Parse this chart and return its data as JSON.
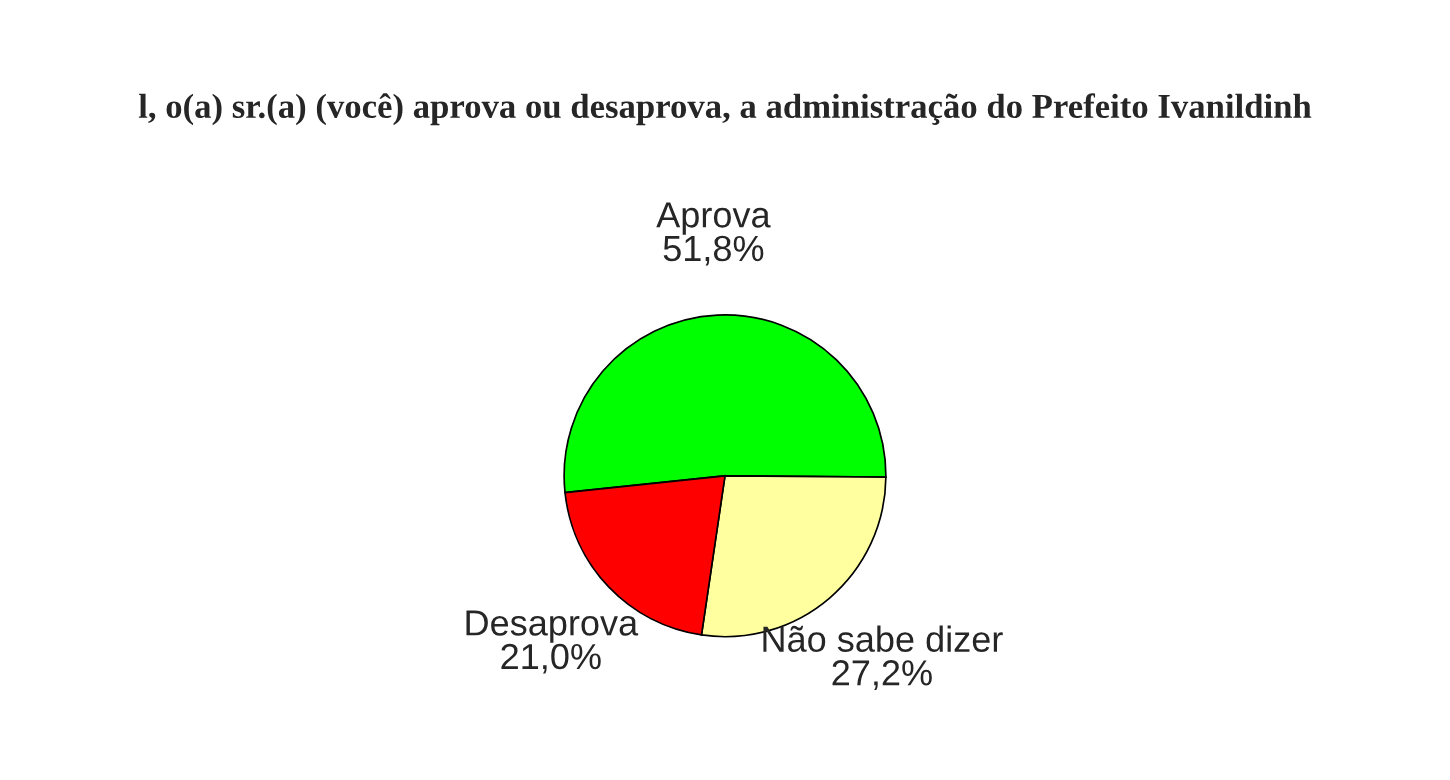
{
  "chart_data": {
    "type": "pie",
    "title": "l, o(a) sr.(a) (você) aprova ou desaprova, a administração do Prefeito Ivanildinh",
    "categories": [
      "Aprova",
      "Não sabe dizer",
      "Desaprova"
    ],
    "values": [
      51.8,
      27.2,
      21.0
    ],
    "value_labels": [
      "51,8%",
      "27,2%",
      "21,0%"
    ],
    "colors": [
      "#00ff00",
      "#ffffa0",
      "#ff0000"
    ]
  }
}
